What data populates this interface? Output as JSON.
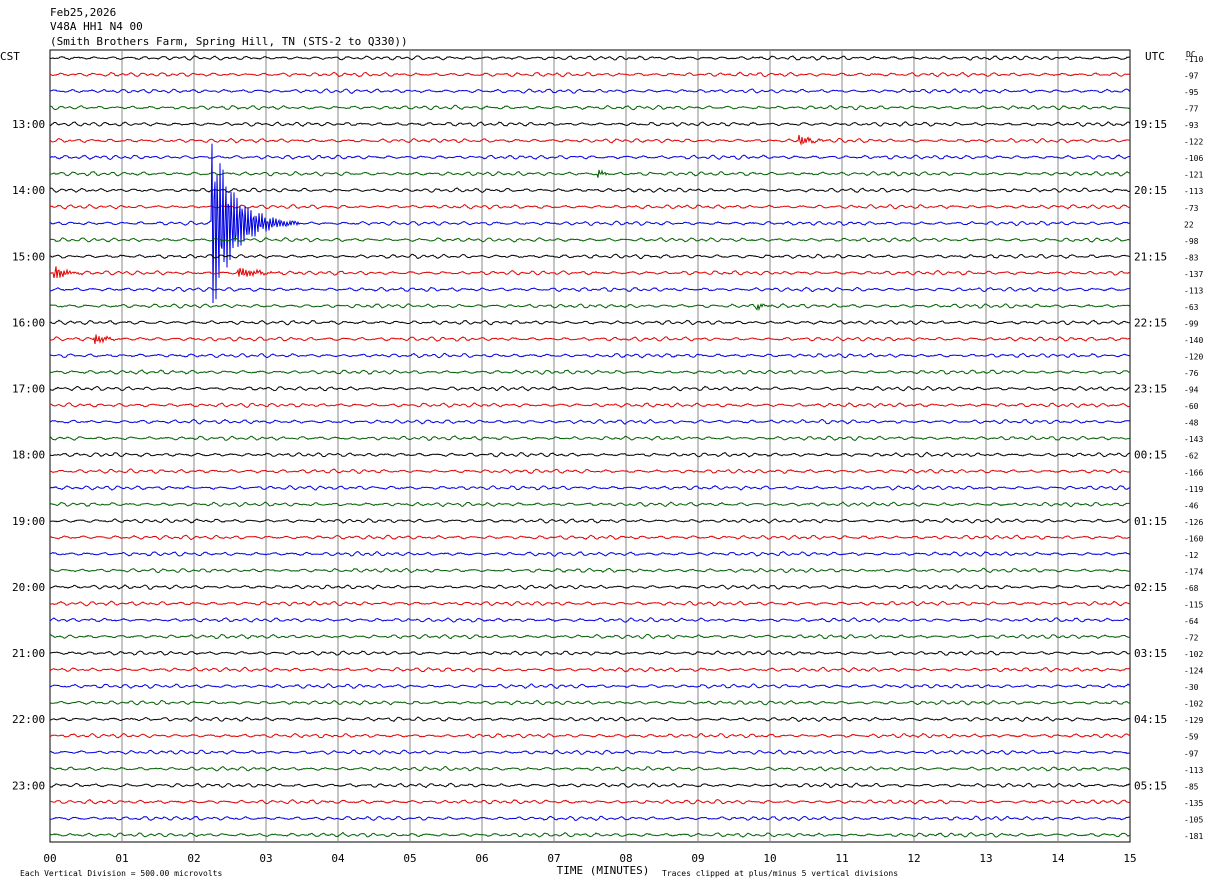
{
  "header": {
    "date": "Feb25,2026",
    "station": "V48A HH1 N4 00",
    "location": "(Smith Brothers Farm, Spring Hill, TN (STS-2 to Q330))"
  },
  "left_tz": "CST",
  "right_tz": "UTC",
  "dc_label": "DC",
  "colors": [
    "#000000",
    "#e00000",
    "#0000e0",
    "#006000"
  ],
  "chart_data": {
    "type": "line",
    "xlabel": "TIME (MINUTES)",
    "x_ticks": [
      "00",
      "01",
      "02",
      "03",
      "04",
      "05",
      "06",
      "07",
      "08",
      "09",
      "10",
      "11",
      "12",
      "13",
      "14",
      "15"
    ],
    "xlim": [
      0,
      15
    ],
    "row_count": 48,
    "left_hour_labels": [
      "13:00",
      "14:00",
      "15:00",
      "16:00",
      "17:00",
      "18:00",
      "19:00",
      "20:00",
      "21:00",
      "22:00",
      "23:00"
    ],
    "right_hour_labels": [
      "19:15",
      "20:15",
      "21:15",
      "22:15",
      "23:15",
      "00:15",
      "01:15",
      "02:15",
      "03:15",
      "04:15",
      "05:15"
    ],
    "dc_offsets": [
      "-110",
      "-97",
      "-95",
      "-77",
      "-93",
      "-122",
      "-106",
      "-121",
      "-113",
      "-73",
      "22",
      "-98",
      "-83",
      "-137",
      "-113",
      "-63",
      "-99",
      "-140",
      "-120",
      "-76",
      "-94",
      "-60",
      "-48",
      "-143",
      "-62",
      "-166",
      "-119",
      "-46",
      "-126",
      "-160",
      "-12",
      "-174",
      "-68",
      "-115",
      "-64",
      "-72",
      "-102",
      "-124",
      "-30",
      "-102",
      "-129",
      "-59",
      "-97",
      "-113",
      "-85",
      "-135",
      "-105",
      "-181"
    ],
    "events": [
      {
        "row": 10,
        "minute": 2.25,
        "amplitude": "clipped",
        "duration_min": 1.2
      },
      {
        "row": 13,
        "minute": 0.05,
        "amplitude": 2.2,
        "duration_min": 0.5
      },
      {
        "row": 13,
        "minute": 2.6,
        "amplitude": 1.4,
        "duration_min": 1.0
      },
      {
        "row": 17,
        "minute": 0.6,
        "amplitude": 1.6,
        "duration_min": 0.5
      },
      {
        "row": 5,
        "minute": 10.4,
        "amplitude": 1.5,
        "duration_min": 0.5
      },
      {
        "row": 7,
        "minute": 7.6,
        "amplitude": 1.3,
        "duration_min": 0.3
      },
      {
        "row": 15,
        "minute": 9.8,
        "amplitude": 1.4,
        "duration_min": 0.3
      }
    ]
  },
  "footer": {
    "scale_note": "Each Vertical Division =  500.00 microvolts",
    "clip_note": "Traces clipped at plus/minus 5 vertical divisions"
  }
}
